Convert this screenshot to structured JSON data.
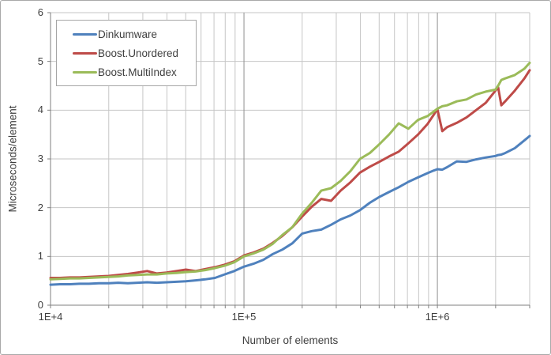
{
  "chart_data": {
    "type": "line",
    "xlabel": "Number of elements",
    "ylabel": "Microseconds/element",
    "x_scale": "log",
    "xlim": [
      10000,
      3000000
    ],
    "ylim": [
      0,
      6
    ],
    "y_ticks": [
      0,
      1,
      2,
      3,
      4,
      5,
      6
    ],
    "x_ticks": [
      {
        "value": 10000,
        "label": "1E+4"
      },
      {
        "value": 100000,
        "label": "1E+5"
      },
      {
        "value": 1000000,
        "label": "1E+6"
      }
    ],
    "grid": true,
    "legend_position": "top-left",
    "grid_color": "#c6c6c6",
    "major_grid_color": "#8f8f8f",
    "axis_color": "#7f7f7f",
    "x": [
      10000,
      11200,
      12600,
      14100,
      15800,
      17800,
      20000,
      22400,
      25100,
      28200,
      31600,
      35500,
      39800,
      44700,
      50100,
      56200,
      63100,
      70800,
      79400,
      89100,
      100000,
      112000,
      126000,
      141000,
      158000,
      178000,
      200000,
      224000,
      251000,
      282000,
      316000,
      355000,
      398000,
      447000,
      501000,
      562000,
      631000,
      708000,
      794000,
      891000,
      955000,
      1000000,
      1060000,
      1122000,
      1259000,
      1413000,
      1585000,
      1778000,
      1995000,
      2060000,
      2140000,
      2239000,
      2512000,
      2818000,
      3000000
    ],
    "series": [
      {
        "name": "Dinkumware",
        "color": "#4f81bd",
        "values": [
          0.42,
          0.43,
          0.43,
          0.44,
          0.44,
          0.45,
          0.45,
          0.46,
          0.45,
          0.46,
          0.47,
          0.46,
          0.47,
          0.48,
          0.49,
          0.51,
          0.53,
          0.56,
          0.63,
          0.7,
          0.79,
          0.85,
          0.93,
          1.05,
          1.14,
          1.27,
          1.47,
          1.52,
          1.55,
          1.65,
          1.76,
          1.84,
          1.95,
          2.1,
          2.22,
          2.32,
          2.42,
          2.53,
          2.62,
          2.71,
          2.76,
          2.79,
          2.78,
          2.83,
          2.95,
          2.94,
          2.99,
          3.03,
          3.06,
          3.08,
          3.09,
          3.12,
          3.22,
          3.38,
          3.47
        ]
      },
      {
        "name": "Boost.Unordered",
        "color": "#be4b48",
        "values": [
          0.56,
          0.56,
          0.57,
          0.57,
          0.58,
          0.59,
          0.6,
          0.62,
          0.64,
          0.67,
          0.7,
          0.65,
          0.67,
          0.7,
          0.73,
          0.7,
          0.74,
          0.78,
          0.83,
          0.9,
          1.02,
          1.08,
          1.16,
          1.28,
          1.42,
          1.6,
          1.82,
          2.02,
          2.18,
          2.14,
          2.35,
          2.52,
          2.72,
          2.84,
          2.94,
          3.05,
          3.15,
          3.32,
          3.5,
          3.72,
          3.9,
          4.02,
          3.57,
          3.65,
          3.74,
          3.85,
          4.0,
          4.15,
          4.4,
          4.47,
          4.1,
          4.18,
          4.4,
          4.65,
          4.82
        ]
      },
      {
        "name": "Boost.MultiIndex",
        "color": "#9bbb59",
        "values": [
          0.53,
          0.54,
          0.55,
          0.55,
          0.56,
          0.57,
          0.58,
          0.59,
          0.61,
          0.62,
          0.63,
          0.63,
          0.65,
          0.66,
          0.68,
          0.69,
          0.72,
          0.76,
          0.81,
          0.88,
          1.0,
          1.06,
          1.14,
          1.26,
          1.44,
          1.6,
          1.88,
          2.1,
          2.35,
          2.4,
          2.55,
          2.75,
          3.0,
          3.12,
          3.3,
          3.5,
          3.73,
          3.62,
          3.8,
          3.88,
          3.97,
          4.03,
          4.08,
          4.1,
          4.18,
          4.22,
          4.32,
          4.38,
          4.42,
          4.5,
          4.62,
          4.65,
          4.72,
          4.85,
          4.97
        ]
      }
    ]
  }
}
